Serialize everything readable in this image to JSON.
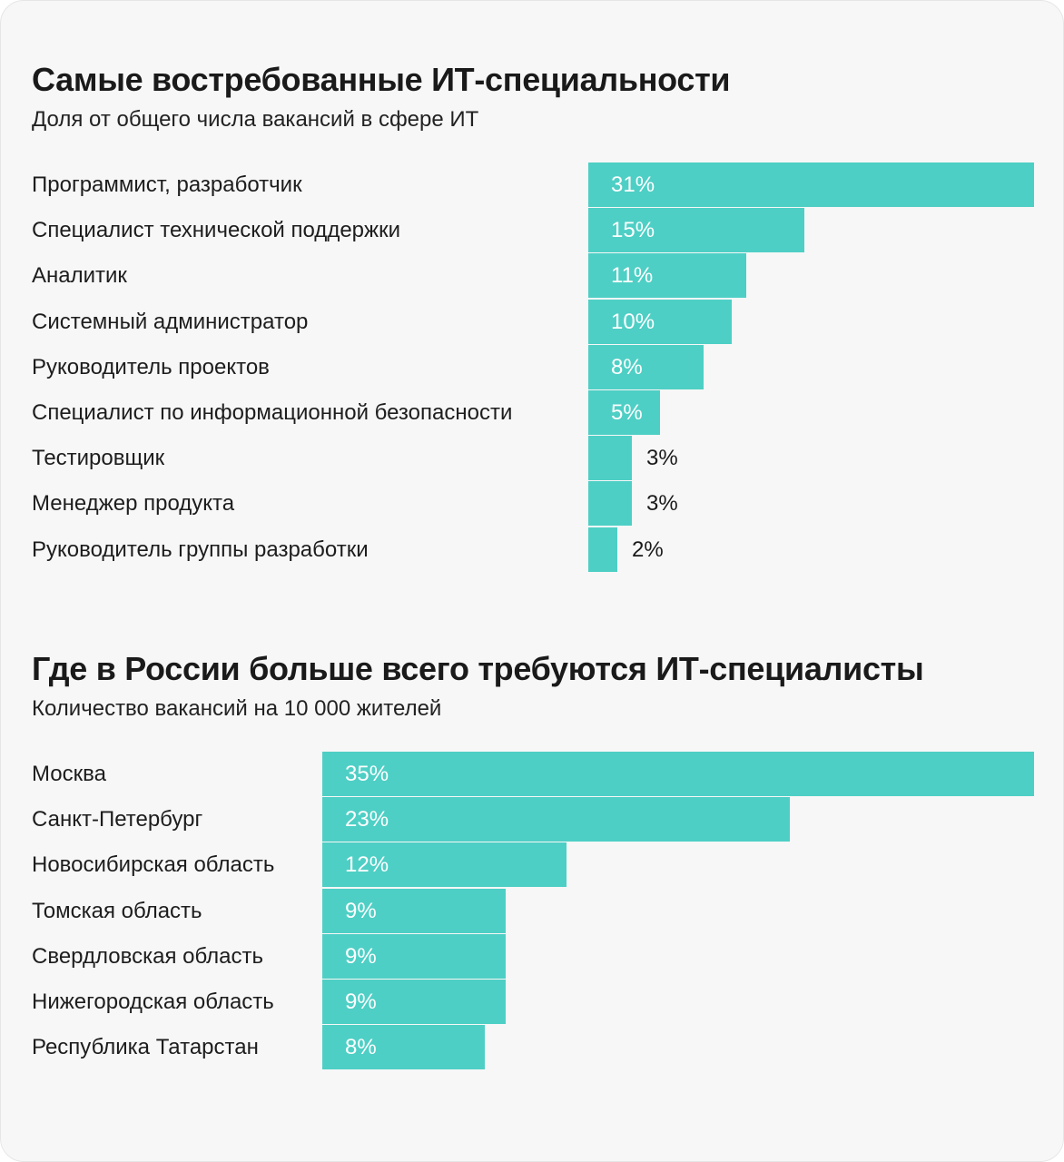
{
  "chart_data": [
    {
      "type": "bar",
      "orientation": "horizontal",
      "title": "Самые востребованные ИТ-специальности",
      "subtitle": "Доля от общего числа вакансий в сфере ИТ",
      "categories": [
        "Программист, разработчик",
        "Специалист технической поддержки",
        "Аналитик",
        "Системный администратор",
        "Руководитель проектов",
        "Специалист по информационной безопасности",
        "Тестировщик",
        "Менеджер продукта",
        "Руководитель группы разработки"
      ],
      "values": [
        31,
        15,
        11,
        10,
        8,
        5,
        3,
        3,
        2
      ],
      "value_labels": [
        "31%",
        "15%",
        "11%",
        "10%",
        "8%",
        "5%",
        "3%",
        "3%",
        "2%"
      ],
      "unit": "%",
      "bar_color": "#4ecfc5",
      "grid": false
    },
    {
      "type": "bar",
      "orientation": "horizontal",
      "title": "Где в России больше всего требуются ИТ-специалисты",
      "subtitle": "Количество вакансий на 10 000 жителей",
      "categories": [
        "Москва",
        "Санкт-Петербург",
        "Новосибирская область",
        "Томская область",
        "Свердловская область",
        "Нижегородская область",
        "Республика Татарстан"
      ],
      "values": [
        35,
        23,
        12,
        9,
        9,
        9,
        8
      ],
      "value_labels": [
        "35%",
        "23%",
        "12%",
        "9%",
        "9%",
        "9%",
        "8%"
      ],
      "unit": "%",
      "bar_color": "#4ecfc5",
      "grid": false
    }
  ]
}
